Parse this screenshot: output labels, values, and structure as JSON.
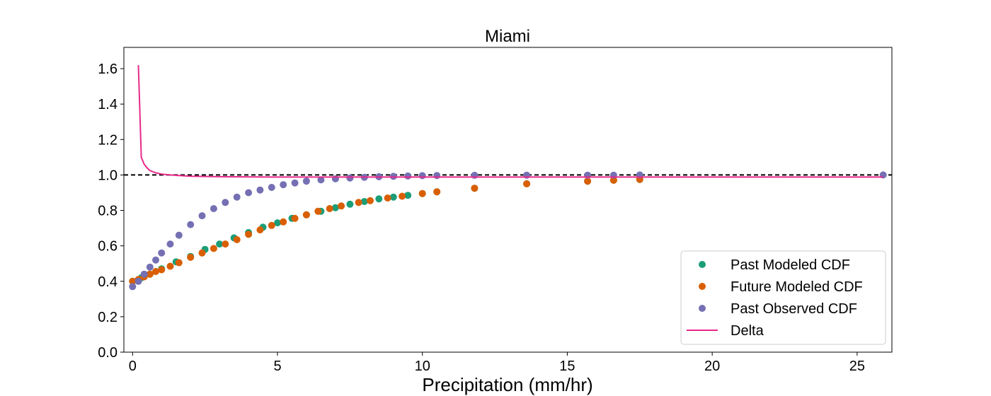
{
  "chart_data": {
    "type": "scatter",
    "title": "Miami",
    "xlabel": "Precipitation (mm/hr)",
    "ylabel": "",
    "xlim": [
      -0.3,
      26.2
    ],
    "ylim": [
      0.0,
      1.72
    ],
    "xticks": [
      "0",
      "5",
      "10",
      "15",
      "20",
      "25"
    ],
    "yticks": [
      "0.0",
      "0.2",
      "0.4",
      "0.6",
      "0.8",
      "1.0",
      "1.2",
      "1.4",
      "1.6"
    ],
    "reference_line": {
      "y": 1.0,
      "style": "dashed",
      "color": "#000000"
    },
    "legend": {
      "position": "lower-right",
      "entries": [
        "Past Modeled CDF",
        "Future Modeled CDF",
        "Past Observed CDF",
        "Delta"
      ]
    },
    "series": [
      {
        "name": "Past Modeled CDF",
        "kind": "scatter",
        "color": "#1b9e77",
        "x": [
          0.0,
          0.3,
          0.6,
          1.0,
          1.5,
          2.0,
          2.5,
          3.0,
          3.5,
          4.0,
          4.5,
          5.0,
          5.5,
          6.0,
          6.5,
          7.0,
          7.5,
          8.0,
          8.5,
          9.0,
          9.5,
          10.0,
          10.5,
          11.8,
          13.6,
          15.7,
          16.6,
          17.5
        ],
        "y": [
          0.4,
          0.42,
          0.44,
          0.47,
          0.51,
          0.54,
          0.58,
          0.61,
          0.645,
          0.675,
          0.705,
          0.73,
          0.755,
          0.775,
          0.795,
          0.815,
          0.835,
          0.85,
          0.865,
          0.875,
          0.885,
          0.895,
          0.905,
          0.925,
          0.95,
          0.965,
          0.97,
          0.975
        ]
      },
      {
        "name": "Future Modeled CDF",
        "kind": "scatter",
        "color": "#d95f02",
        "x": [
          0.0,
          0.2,
          0.4,
          0.6,
          0.8,
          1.0,
          1.3,
          1.6,
          2.0,
          2.4,
          2.8,
          3.2,
          3.6,
          4.0,
          4.4,
          4.8,
          5.2,
          5.6,
          6.0,
          6.4,
          6.8,
          7.2,
          7.8,
          8.2,
          8.8,
          9.3,
          10.0,
          10.5,
          11.8,
          13.6,
          15.7,
          16.6,
          17.5
        ],
        "y": [
          0.4,
          0.41,
          0.425,
          0.44,
          0.455,
          0.465,
          0.485,
          0.505,
          0.535,
          0.56,
          0.585,
          0.61,
          0.635,
          0.665,
          0.69,
          0.715,
          0.735,
          0.755,
          0.775,
          0.795,
          0.81,
          0.825,
          0.845,
          0.855,
          0.87,
          0.88,
          0.895,
          0.905,
          0.925,
          0.95,
          0.965,
          0.97,
          0.975
        ]
      },
      {
        "name": "Past Observed CDF",
        "kind": "scatter",
        "color": "#7570b3",
        "x": [
          0.0,
          0.2,
          0.4,
          0.6,
          0.8,
          1.0,
          1.3,
          1.6,
          2.0,
          2.4,
          2.8,
          3.2,
          3.6,
          4.0,
          4.4,
          4.8,
          5.2,
          5.6,
          6.0,
          6.5,
          7.0,
          7.5,
          8.0,
          8.5,
          9.0,
          9.5,
          10.0,
          10.5,
          11.8,
          13.6,
          15.7,
          16.6,
          17.5,
          25.9
        ],
        "y": [
          0.37,
          0.4,
          0.44,
          0.48,
          0.52,
          0.56,
          0.61,
          0.66,
          0.72,
          0.77,
          0.81,
          0.845,
          0.875,
          0.9,
          0.915,
          0.93,
          0.945,
          0.955,
          0.965,
          0.972,
          0.978,
          0.983,
          0.987,
          0.99,
          0.992,
          0.994,
          0.996,
          0.997,
          0.998,
          0.999,
          0.999,
          0.999,
          1.0,
          1.0
        ]
      },
      {
        "name": "Delta",
        "kind": "line",
        "color": "#e7298a",
        "x": [
          0.2,
          0.3,
          0.4,
          0.5,
          0.6,
          0.8,
          1.0,
          1.3,
          1.6,
          2.0,
          3.0,
          5.0,
          8.0,
          12.0,
          18.0,
          25.9
        ],
        "y": [
          1.62,
          1.1,
          1.06,
          1.04,
          1.025,
          1.012,
          1.005,
          1.0,
          0.997,
          0.993,
          0.99,
          0.988,
          0.988,
          0.988,
          0.988,
          0.988
        ]
      }
    ]
  }
}
